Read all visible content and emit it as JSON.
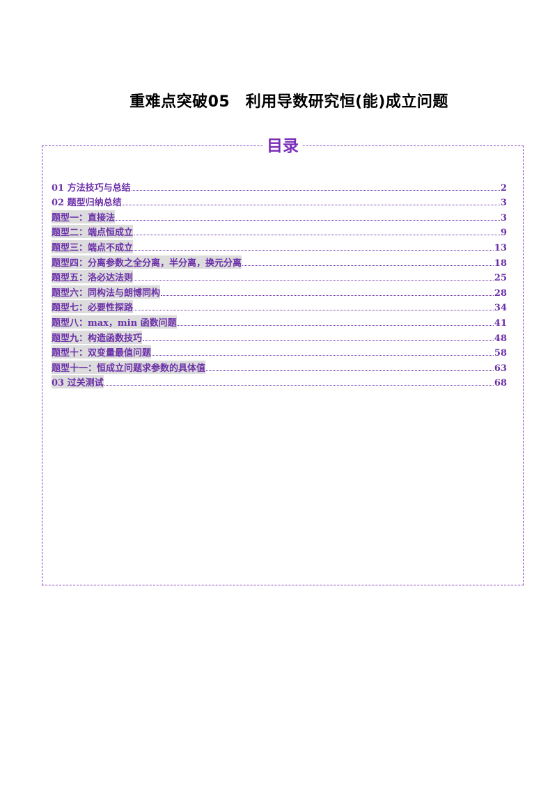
{
  "document": {
    "title": "重难点突破05　利用导数研究恒(能)成立问题"
  },
  "toc": {
    "heading": "目录",
    "entries": [
      {
        "label": "01 方法技巧与总结",
        "page": "2",
        "highlighted": false
      },
      {
        "label": "02 题型归纳总结",
        "page": "3",
        "highlighted": false
      },
      {
        "label": "题型一：直接法",
        "page": "3",
        "highlighted": true
      },
      {
        "label": "题型二：端点恒成立",
        "page": "9",
        "highlighted": true
      },
      {
        "label": "题型三：端点不成立",
        "page": "13",
        "highlighted": true
      },
      {
        "label": "题型四：分离参数之全分离，半分离，换元分离",
        "page": "18",
        "highlighted": true
      },
      {
        "label": "题型五：洛必达法则",
        "page": "25",
        "highlighted": true
      },
      {
        "label": "题型六：同构法与朗博同构",
        "page": "28",
        "highlighted": true
      },
      {
        "label": "题型七：必要性探路",
        "page": "34",
        "highlighted": true
      },
      {
        "label": "题型八：max，min 函数问题",
        "page": "41",
        "highlighted": true
      },
      {
        "label": "题型九：构造函数技巧",
        "page": "48",
        "highlighted": true
      },
      {
        "label": "题型十：双变量最值问题",
        "page": "58",
        "highlighted": true
      },
      {
        "label": "题型十一：恒成立问题求参数的具体值",
        "page": "63",
        "highlighted": true
      },
      {
        "label": "03 过关测试",
        "page": "68",
        "highlighted": true
      }
    ]
  },
  "colors": {
    "accent": "#7a2fb8",
    "entry_text": "#6b2fa8",
    "highlight": "#dcdcdc",
    "title": "#000000"
  }
}
